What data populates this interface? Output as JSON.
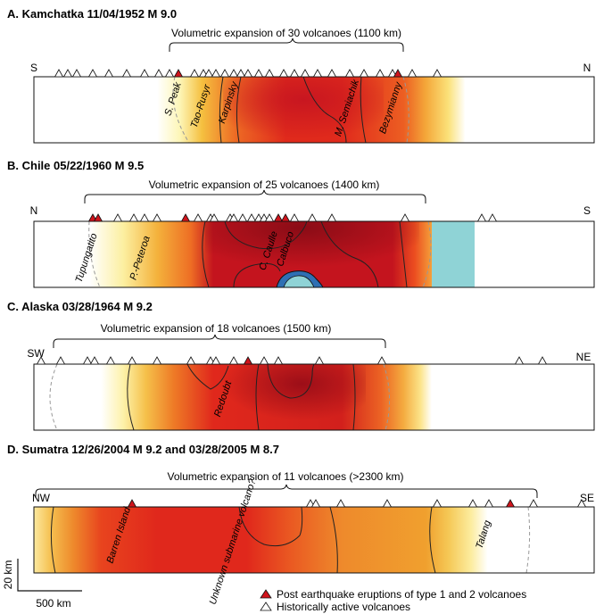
{
  "panels": [
    {
      "title": "A. Kamchatka  11/04/1952 M 9.0",
      "expansion": "Volumetric expansion of 30 volcanoes (1100 km)",
      "left": "S",
      "right": "N",
      "volcanoes": [
        "S. Peak",
        "Tao-Rusyr",
        "Karpinsky",
        "M. Semiachik",
        "Bezymianny"
      ]
    },
    {
      "title": "B. Chile  05/22/1960 M 9.5",
      "expansion": "Volumetric expansion of 25 volcanoes (1400 km)",
      "left": "N",
      "right": "S",
      "volcanoes": [
        "Tupungatito",
        "P.-Peteroa",
        "C. Caulle",
        "Calbuco"
      ]
    },
    {
      "title": "C. Alaska  03/28/1964 M 9.2",
      "expansion": "Volumetric expansion of 18 volcanoes (1500 km)",
      "left": "SW",
      "right": "NE",
      "volcanoes": [
        "Redoubt"
      ]
    },
    {
      "title": "D. Sumatra  12/26/2004 M 9.2 and 03/28/2005 M 8.7",
      "expansion": "Volumetric expansion of 11 volcanoes (>2300 km)",
      "left": "NW",
      "right": "SE",
      "volcanoes": [
        "Barren Island",
        "Unknown submarine volcano?",
        "Talang"
      ]
    }
  ],
  "scale": {
    "vertical": "20 km",
    "horizontal": "500 km"
  },
  "legend": {
    "post_eruption": "Post earthquake eruptions of type 1 and 2 volcanoes",
    "historic": "Historically active volcanoes"
  },
  "colors": {
    "dark_red": "#a5121c",
    "red": "#e0251e",
    "orange": "#f09a28",
    "yellow": "#fce44a",
    "cyan": "#8fd3d6",
    "blue": "#2f6fb3"
  }
}
